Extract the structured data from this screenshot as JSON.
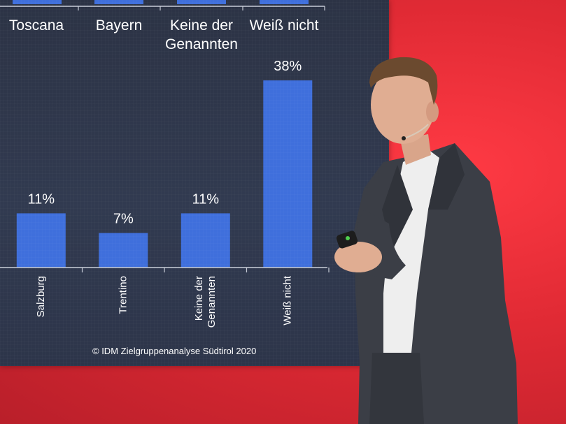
{
  "slide": {
    "top_labels": [
      "Toscana",
      "Bayern",
      "Keine der",
      "Genannten",
      "Weiß nicht"
    ],
    "credit": "© IDM Zielgruppenanalyse Südtirol 2020"
  },
  "chart_data": {
    "type": "bar",
    "categories": [
      "Salzburg",
      "Trentino",
      "Keine der Genannten",
      "Weiß nicht"
    ],
    "category_lines": [
      [
        "Salzburg"
      ],
      [
        "Trentino"
      ],
      [
        "Keine der",
        "Genannten"
      ],
      [
        "Weiß nicht"
      ]
    ],
    "values": [
      11,
      7,
      11,
      38
    ],
    "value_labels": [
      "11%",
      "7%",
      "11%",
      "38%"
    ],
    "ylim": [
      0,
      40
    ],
    "bar_color": "#3f6fdc"
  },
  "colors": {
    "stage_red": "#e8303a",
    "screen_bg": "#2f3749",
    "jacket": "#3a3d45",
    "shirt": "#f2f2f2"
  }
}
